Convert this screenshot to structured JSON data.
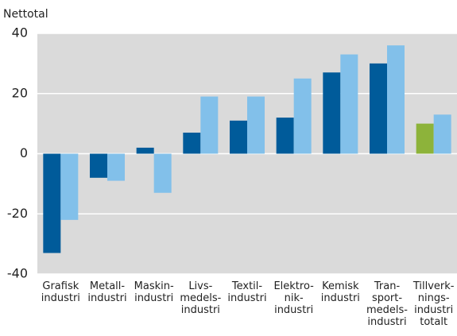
{
  "chart_data": {
    "type": "bar",
    "ylabel": "Nettotal",
    "categories": [
      "Grafisk\nindustri",
      "Metall-\nindustri",
      "Maskin-\nindustri",
      "Livs-\nmedels-\nindustri",
      "Textil-\nindustri",
      "Elektro-\nnik-\nindustri",
      "Kemisk\nindustri",
      "Tran-\nsport-\nmedels-\nindustri",
      "Tillverk-\nnings-\nindustri\ntotalt"
    ],
    "series": [
      {
        "color": "#005b9a",
        "colors": [
          "#005b9a",
          "#005b9a",
          "#005b9a",
          "#005b9a",
          "#005b9a",
          "#005b9a",
          "#005b9a",
          "#005b9a",
          "#8db33a"
        ],
        "values": [
          -33,
          -8,
          2,
          7,
          11,
          12,
          27,
          30,
          10
        ]
      },
      {
        "color": "#82c0ea",
        "values": [
          -22,
          -9,
          -13,
          19,
          19,
          25,
          33,
          36,
          13
        ]
      }
    ],
    "ylim": [
      -40,
      40
    ],
    "yticks": [
      -40,
      -20,
      0,
      20,
      40
    ],
    "grid": true
  }
}
